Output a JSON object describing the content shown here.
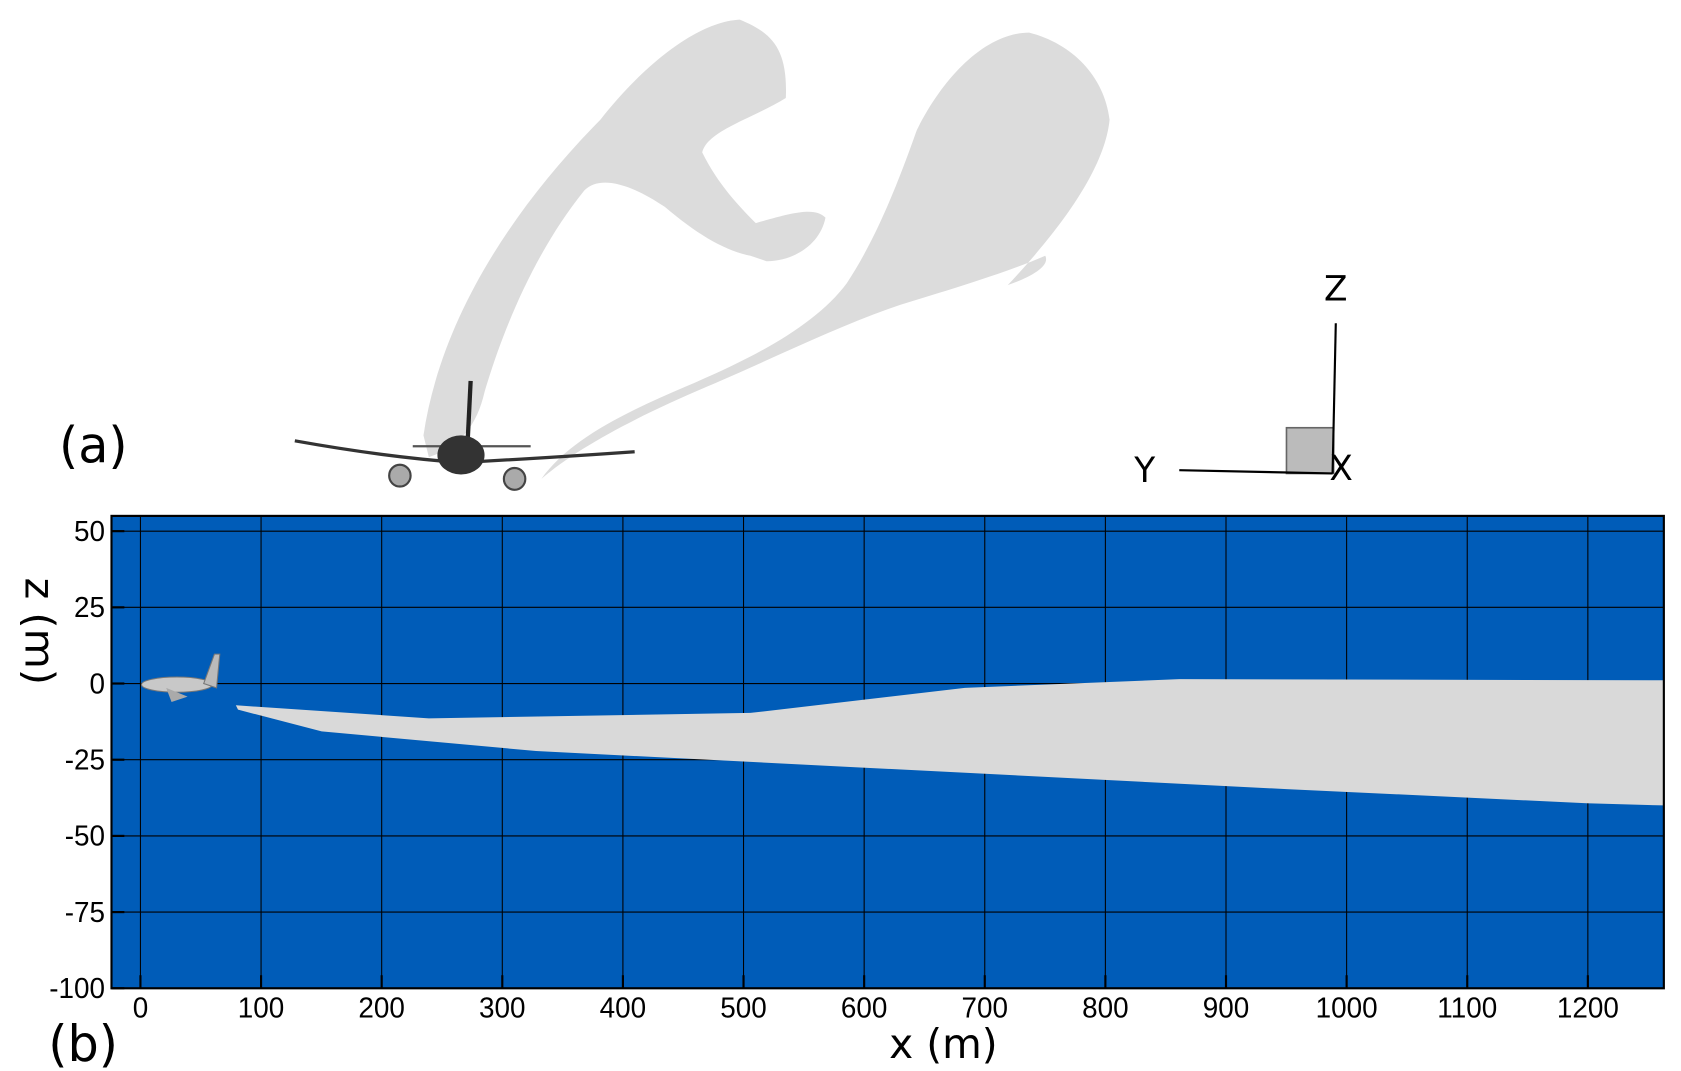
{
  "panel_a": {
    "label": "(a)",
    "axis_y": "Y",
    "axis_z": "Z",
    "axis_x": "X"
  },
  "chart_data": {
    "type": "isosurface",
    "label": "(b)",
    "xlabel": "x (m)",
    "ylabel": "z (m)",
    "xlim": [
      -24,
      1263
    ],
    "ylim": [
      -100,
      55
    ],
    "xticks": [
      0,
      100,
      200,
      300,
      400,
      500,
      600,
      700,
      800,
      900,
      1000,
      1100,
      1200
    ],
    "yticks": [
      -100,
      -75,
      -50,
      -25,
      0,
      25,
      50
    ],
    "grid": true,
    "background": "#005cb8",
    "surface_color": "#d9d9d9"
  }
}
